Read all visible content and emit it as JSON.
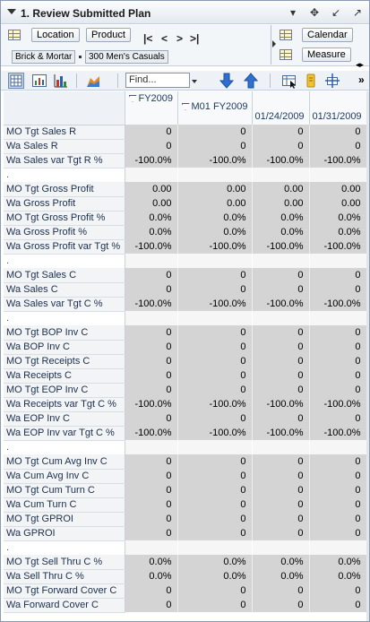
{
  "title": "1. Review Submitted Plan",
  "title_icons": [
    "chevron-down-icon",
    "move-icon",
    "minimize-icon",
    "expand-icon"
  ],
  "view": {
    "location_label": "Location",
    "product_label": "Product",
    "calendar_label": "Calendar",
    "measure_label": "Measure",
    "location_value": "Brick & Mortar",
    "product_value": "300 Men's Casuals"
  },
  "toolbar": {
    "find_placeholder": "Find..."
  },
  "columns": {
    "c1": "FY2009",
    "c2": "M01 FY2009",
    "c3": "01/24/2009",
    "c4": "01/31/2009"
  },
  "rows": [
    {
      "label": "MO Tgt Sales R",
      "values": [
        "0",
        "0",
        "0",
        "0"
      ]
    },
    {
      "label": "Wa Sales R",
      "values": [
        "0",
        "0",
        "0",
        "0"
      ]
    },
    {
      "label": "Wa Sales var Tgt R %",
      "values": [
        "-100.0%",
        "-100.0%",
        "-100.0%",
        "-100.0%"
      ]
    },
    {
      "label": ".",
      "values": null
    },
    {
      "label": "MO Tgt Gross Profit",
      "values": [
        "0.00",
        "0.00",
        "0.00",
        "0.00"
      ]
    },
    {
      "label": "Wa Gross Profit",
      "values": [
        "0.00",
        "0.00",
        "0.00",
        "0.00"
      ]
    },
    {
      "label": "MO Tgt Gross Profit %",
      "values": [
        "0.0%",
        "0.0%",
        "0.0%",
        "0.0%"
      ]
    },
    {
      "label": "Wa Gross Profit %",
      "values": [
        "0.0%",
        "0.0%",
        "0.0%",
        "0.0%"
      ]
    },
    {
      "label": "Wa Gross Profit var Tgt %",
      "values": [
        "-100.0%",
        "-100.0%",
        "-100.0%",
        "-100.0%"
      ]
    },
    {
      "label": ".",
      "values": null
    },
    {
      "label": "MO Tgt Sales C",
      "values": [
        "0",
        "0",
        "0",
        "0"
      ]
    },
    {
      "label": "Wa Sales C",
      "values": [
        "0",
        "0",
        "0",
        "0"
      ]
    },
    {
      "label": "Wa Sales var Tgt C %",
      "values": [
        "-100.0%",
        "-100.0%",
        "-100.0%",
        "-100.0%"
      ]
    },
    {
      "label": ".",
      "values": null
    },
    {
      "label": "MO Tgt BOP Inv C",
      "values": [
        "0",
        "0",
        "0",
        "0"
      ]
    },
    {
      "label": "Wa BOP Inv C",
      "values": [
        "0",
        "0",
        "0",
        "0"
      ]
    },
    {
      "label": "MO Tgt Receipts C",
      "values": [
        "0",
        "0",
        "0",
        "0"
      ]
    },
    {
      "label": "Wa Receipts C",
      "values": [
        "0",
        "0",
        "0",
        "0"
      ]
    },
    {
      "label": "MO Tgt EOP Inv C",
      "values": [
        "0",
        "0",
        "0",
        "0"
      ]
    },
    {
      "label": "Wa Receipts var Tgt C %",
      "values": [
        "-100.0%",
        "-100.0%",
        "-100.0%",
        "-100.0%"
      ]
    },
    {
      "label": "Wa EOP Inv C",
      "values": [
        "0",
        "0",
        "0",
        "0"
      ]
    },
    {
      "label": "Wa EOP Inv var Tgt C %",
      "values": [
        "-100.0%",
        "-100.0%",
        "-100.0%",
        "-100.0%"
      ]
    },
    {
      "label": ".",
      "values": null
    },
    {
      "label": "MO Tgt Cum Avg Inv C",
      "values": [
        "0",
        "0",
        "0",
        "0"
      ]
    },
    {
      "label": "Wa Cum Avg Inv C",
      "values": [
        "0",
        "0",
        "0",
        "0"
      ]
    },
    {
      "label": "MO Tgt Cum Turn C",
      "values": [
        "0",
        "0",
        "0",
        "0"
      ]
    },
    {
      "label": "Wa Cum Turn C",
      "values": [
        "0",
        "0",
        "0",
        "0"
      ]
    },
    {
      "label": "MO Tgt GPROI",
      "values": [
        "0",
        "0",
        "0",
        "0"
      ]
    },
    {
      "label": "Wa GPROI",
      "values": [
        "0",
        "0",
        "0",
        "0"
      ]
    },
    {
      "label": ".",
      "values": null
    },
    {
      "label": "MO Tgt Sell Thru C %",
      "values": [
        "0.0%",
        "0.0%",
        "0.0%",
        "0.0%"
      ]
    },
    {
      "label": "Wa Sell Thru C %",
      "values": [
        "0.0%",
        "0.0%",
        "0.0%",
        "0.0%"
      ]
    },
    {
      "label": "MO Tgt Forward Cover C",
      "values": [
        "0",
        "0",
        "0",
        "0"
      ]
    },
    {
      "label": "Wa Forward Cover C",
      "values": [
        "0",
        "0",
        "0",
        "0"
      ]
    }
  ]
}
